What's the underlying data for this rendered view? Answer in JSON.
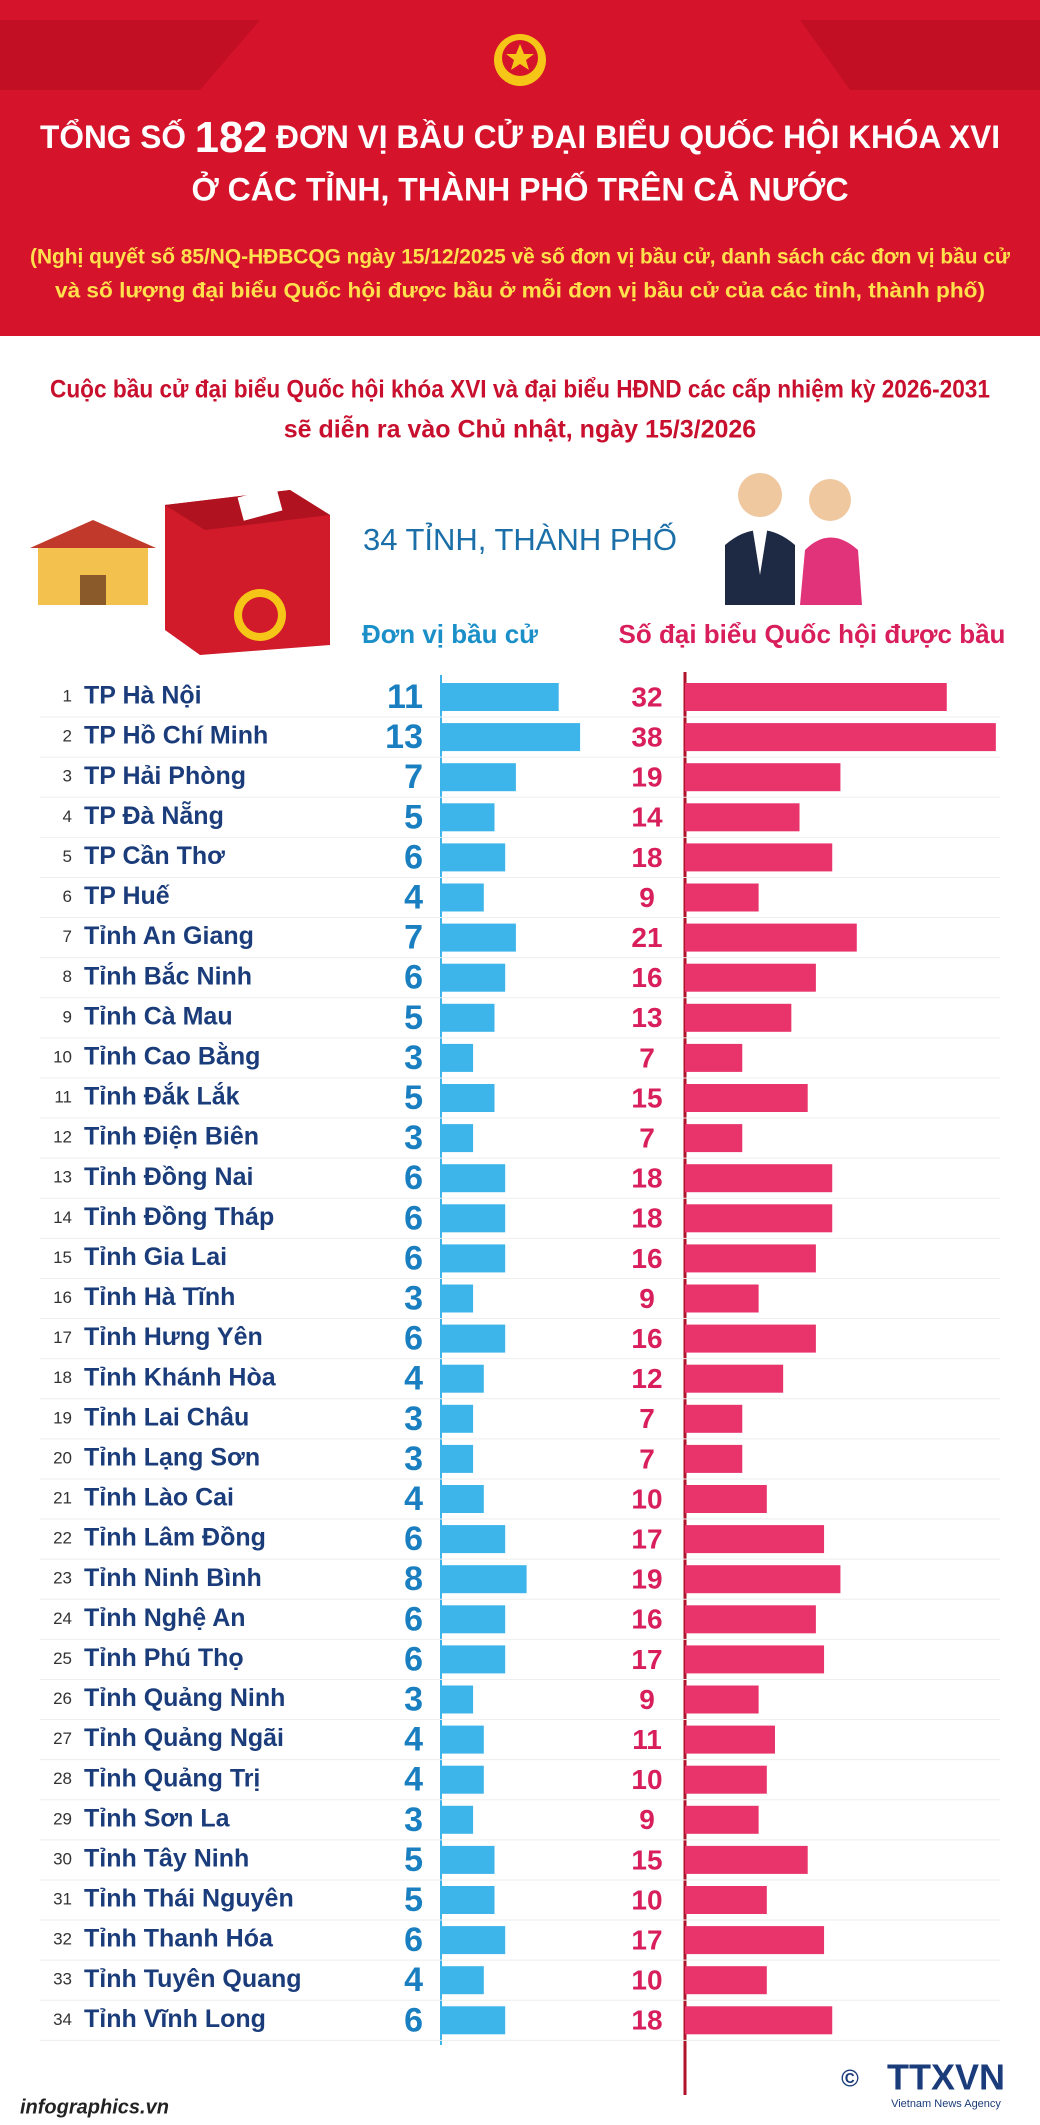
{
  "header": {
    "title_before": "TỔNG SỐ",
    "title_number": 182,
    "title_after": "ĐƠN VỊ BẦU CỬ ĐẠI BIỂU QUỐC HỘI KHÓA XVI",
    "title_line2": "Ở CÁC TỈNH, THÀNH PHỐ TRÊN CẢ NƯỚC",
    "subtitle_line1": "(Nghị quyết số 85/NQ-HĐBCQG ngày 15/12/2025 về số đơn vị bầu cử, danh sách các đơn vị bầu cử",
    "subtitle_line2": "và số lượng đại biểu Quốc hội được bầu ở mỗi đơn vị bầu cử của các tỉnh, thành phố)"
  },
  "intro": {
    "line1": "Cuộc bầu cử đại biểu Quốc hội khóa XVI và đại biểu HĐND các cấp nhiệm kỳ 2026-2031",
    "line2": "sẽ diễn ra vào Chủ nhật, ngày 15/3/2026",
    "count_label": "34 TỈNH, THÀNH PHỐ"
  },
  "chart_data": {
    "type": "bar",
    "orientation": "horizontal",
    "row_numbers": [
      1,
      2,
      3,
      4,
      5,
      6,
      7,
      8,
      9,
      10,
      11,
      12,
      13,
      14,
      15,
      16,
      17,
      18,
      19,
      20,
      21,
      22,
      23,
      24,
      25,
      26,
      27,
      28,
      29,
      30,
      31,
      32,
      33,
      34
    ],
    "categories": [
      "TP Hà Nội",
      "TP Hồ Chí Minh",
      "TP Hải Phòng",
      "TP Đà Nẵng",
      "TP Cần Thơ",
      "TP Huế",
      "Tỉnh An Giang",
      "Tỉnh Bắc Ninh",
      "Tỉnh Cà Mau",
      "Tỉnh Cao Bằng",
      "Tỉnh Đắk Lắk",
      "Tỉnh Điện Biên",
      "Tỉnh Đồng Nai",
      "Tỉnh Đồng Tháp",
      "Tỉnh Gia Lai",
      "Tỉnh Hà Tĩnh",
      "Tỉnh Hưng Yên",
      "Tỉnh Khánh Hòa",
      "Tỉnh Lai Châu",
      "Tỉnh Lạng Sơn",
      "Tỉnh Lào Cai",
      "Tỉnh Lâm Đồng",
      "Tỉnh Ninh Bình",
      "Tỉnh Nghệ An",
      "Tỉnh Phú Thọ",
      "Tỉnh Quảng Ninh",
      "Tỉnh Quảng Ngãi",
      "Tỉnh Quảng Trị",
      "Tỉnh Sơn La",
      "Tỉnh Tây Ninh",
      "Tỉnh Thái Nguyên",
      "Tỉnh Thanh Hóa",
      "Tỉnh Tuyên Quang",
      "Tỉnh Vĩnh Long"
    ],
    "series": [
      {
        "name": "Đơn vị bầu cử",
        "color": "#3db5ea",
        "values": [
          11,
          13,
          7,
          5,
          6,
          4,
          7,
          6,
          5,
          3,
          5,
          3,
          6,
          6,
          6,
          3,
          6,
          4,
          3,
          3,
          4,
          6,
          8,
          6,
          6,
          3,
          4,
          4,
          3,
          5,
          5,
          6,
          4,
          6
        ]
      },
      {
        "name": "Số đại biểu Quốc hội được bầu",
        "color": "#e8336b",
        "values": [
          32,
          38,
          19,
          14,
          18,
          9,
          21,
          16,
          13,
          7,
          15,
          7,
          18,
          18,
          16,
          9,
          16,
          12,
          7,
          7,
          10,
          17,
          19,
          16,
          17,
          9,
          11,
          10,
          9,
          15,
          10,
          17,
          10,
          18
        ]
      }
    ]
  },
  "footer": {
    "site": "infographics.vn",
    "copyright": "©",
    "agency": "TTXVN",
    "agency_en": "Vietnam News Agency"
  }
}
